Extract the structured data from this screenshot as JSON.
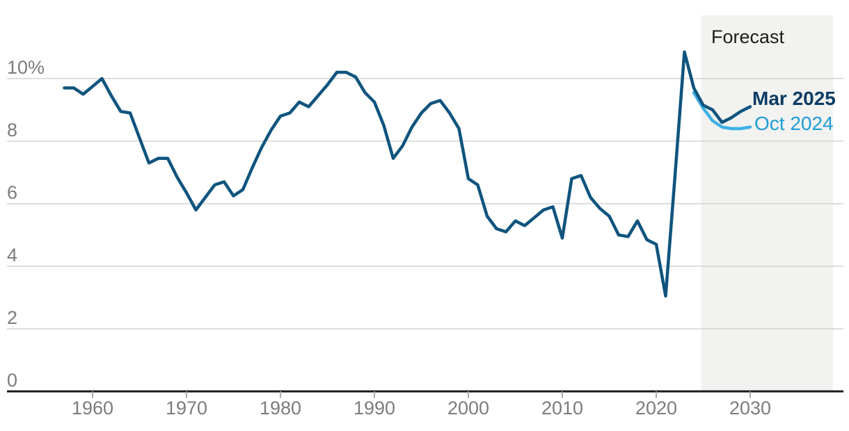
{
  "chart_data": {
    "type": "line",
    "title": "",
    "grid": "horizontal",
    "legend_position": "line-end-labels",
    "x_axis": {
      "tick_labels": [
        "1960",
        "1970",
        "1980",
        "1990",
        "2000",
        "2010",
        "2020",
        "2030"
      ],
      "tick_years": [
        1960,
        1970,
        1980,
        1990,
        2000,
        2010,
        2020,
        2030
      ],
      "range": [
        1956.5,
        2031.5
      ]
    },
    "y_axis": {
      "unit": "percent",
      "tick_labels": [
        "10%",
        "8",
        "6",
        "4",
        "2",
        "0"
      ],
      "tick_values": [
        10,
        8,
        6,
        4,
        2,
        0
      ],
      "range": [
        0,
        10.9
      ]
    },
    "forecast_band": {
      "label": "Forecast",
      "start_year": 2025
    },
    "series": [
      {
        "name": "Mar 2025",
        "color": "#0f547e",
        "label_color": "#0c3c64",
        "points": [
          [
            1957,
            9.7
          ],
          [
            1958,
            9.7
          ],
          [
            1959,
            9.5
          ],
          [
            1960,
            9.75
          ],
          [
            1961,
            10
          ],
          [
            1962,
            9.45
          ],
          [
            1963,
            8.95
          ],
          [
            1964,
            8.9
          ],
          [
            1965,
            8.1
          ],
          [
            1966,
            7.3
          ],
          [
            1967,
            7.45
          ],
          [
            1968,
            7.45
          ],
          [
            1969,
            6.85
          ],
          [
            1970,
            6.35
          ],
          [
            1971,
            5.8
          ],
          [
            1972,
            6.2
          ],
          [
            1973,
            6.6
          ],
          [
            1974,
            6.7
          ],
          [
            1975,
            6.25
          ],
          [
            1976,
            6.45
          ],
          [
            1977,
            7.15
          ],
          [
            1978,
            7.8
          ],
          [
            1979,
            8.35
          ],
          [
            1980,
            8.8
          ],
          [
            1981,
            8.9
          ],
          [
            1982,
            9.25
          ],
          [
            1983,
            9.1
          ],
          [
            1984,
            9.45
          ],
          [
            1985,
            9.8
          ],
          [
            1986,
            10.2
          ],
          [
            1987,
            10.2
          ],
          [
            1988,
            10.05
          ],
          [
            1989,
            9.55
          ],
          [
            1990,
            9.25
          ],
          [
            1991,
            8.5
          ],
          [
            1992,
            7.45
          ],
          [
            1993,
            7.85
          ],
          [
            1994,
            8.45
          ],
          [
            1995,
            8.9
          ],
          [
            1996,
            9.2
          ],
          [
            1997,
            9.3
          ],
          [
            1998,
            8.9
          ],
          [
            1999,
            8.4
          ],
          [
            2000,
            6.8
          ],
          [
            2001,
            6.6
          ],
          [
            2002,
            5.6
          ],
          [
            2003,
            5.2
          ],
          [
            2004,
            5.1
          ],
          [
            2005,
            5.45
          ],
          [
            2006,
            5.3
          ],
          [
            2007,
            5.55
          ],
          [
            2008,
            5.8
          ],
          [
            2009,
            5.9
          ],
          [
            2010,
            4.9
          ],
          [
            2011,
            6.8
          ],
          [
            2012,
            6.9
          ],
          [
            2013,
            6.2
          ],
          [
            2014,
            5.85
          ],
          [
            2015,
            5.6
          ],
          [
            2016,
            5
          ],
          [
            2017,
            4.95
          ],
          [
            2018,
            5.45
          ],
          [
            2019,
            4.85
          ],
          [
            2020,
            4.7
          ],
          [
            2021,
            3.05
          ],
          [
            2022,
            6.9
          ],
          [
            2023,
            10.85
          ],
          [
            2024,
            9.7
          ],
          [
            2025,
            9.15
          ],
          [
            2026,
            9
          ],
          [
            2027,
            8.6
          ],
          [
            2028,
            8.75
          ],
          [
            2029,
            8.95
          ],
          [
            2030,
            9.1
          ]
        ]
      },
      {
        "name": "Oct 2024",
        "color": "#3fb0e6",
        "label_color": "#1e9dd8",
        "points": [
          [
            2024,
            9.55
          ],
          [
            2025,
            9.05
          ],
          [
            2026,
            8.65
          ],
          [
            2027,
            8.45
          ],
          [
            2028,
            8.4
          ],
          [
            2029,
            8.4
          ],
          [
            2030,
            8.45
          ]
        ]
      }
    ]
  },
  "colors": {
    "background": "#ffffff",
    "gridline": "#cbcbcb",
    "axis": "#1a1a1a",
    "tick": "#a9a9a9",
    "axis_label": "#7c7c7c",
    "forecast_band_fill": "#f2f2f0",
    "forecast_label": "#1d1d1b"
  }
}
